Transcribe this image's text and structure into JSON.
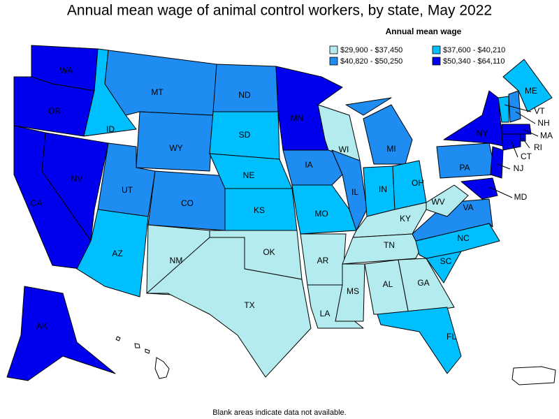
{
  "map": {
    "title": "Annual mean wage of animal control workers, by state, May 2022",
    "legend": {
      "title": "Annual mean wage",
      "items": [
        {
          "label": "$29,900 - $37,450",
          "color": "#b3ebee"
        },
        {
          "label": "$37,600 - $40,210",
          "color": "#00bfff"
        },
        {
          "label": "$40,820 - $50,250",
          "color": "#1e8cf0"
        },
        {
          "label": "$50,340 - $64,110",
          "color": "#0000ee"
        }
      ]
    },
    "states": [
      {
        "label": "WA",
        "color": "#0000ee"
      },
      {
        "label": "OR",
        "color": "#0000ee"
      },
      {
        "label": "CA",
        "color": "#0000ee"
      },
      {
        "label": "NV",
        "color": "#0000ee"
      },
      {
        "label": "ID",
        "color": "#00bfff"
      },
      {
        "label": "MT",
        "color": "#1e8cf0"
      },
      {
        "label": "WY",
        "color": "#1e8cf0"
      },
      {
        "label": "UT",
        "color": "#1e8cf0"
      },
      {
        "label": "CO",
        "color": "#1e8cf0"
      },
      {
        "label": "AZ",
        "color": "#00bfff"
      },
      {
        "label": "NM",
        "color": "#b3ebee"
      },
      {
        "label": "ND",
        "color": "#1e8cf0"
      },
      {
        "label": "SD",
        "color": "#00bfff"
      },
      {
        "label": "NE",
        "color": "#00bfff"
      },
      {
        "label": "KS",
        "color": "#00bfff"
      },
      {
        "label": "OK",
        "color": "#b3ebee"
      },
      {
        "label": "TX",
        "color": "#b3ebee"
      },
      {
        "label": "MN",
        "color": "#0000ee"
      },
      {
        "label": "IA",
        "color": "#1e8cf0"
      },
      {
        "label": "MO",
        "color": "#00bfff"
      },
      {
        "label": "AR",
        "color": "#b3ebee"
      },
      {
        "label": "LA",
        "color": "#b3ebee"
      },
      {
        "label": "WI",
        "color": "#b3ebee"
      },
      {
        "label": "IL",
        "color": "#1e8cf0"
      },
      {
        "label": "MI",
        "color": "#1e8cf0"
      },
      {
        "label": "IN",
        "color": "#00bfff"
      },
      {
        "label": "OH",
        "color": "#00bfff"
      },
      {
        "label": "KY",
        "color": "#b3ebee"
      },
      {
        "label": "TN",
        "color": "#b3ebee"
      },
      {
        "label": "MS",
        "color": "#b3ebee"
      },
      {
        "label": "AL",
        "color": "#b3ebee"
      },
      {
        "label": "GA",
        "color": "#b3ebee"
      },
      {
        "label": "FL",
        "color": "#00bfff"
      },
      {
        "label": "SC",
        "color": "#00bfff"
      },
      {
        "label": "NC",
        "color": "#00bfff"
      },
      {
        "label": "VA",
        "color": "#1e8cf0"
      },
      {
        "label": "WV",
        "color": "#b3ebee"
      },
      {
        "label": "PA",
        "color": "#1e8cf0"
      },
      {
        "label": "NY",
        "color": "#0000ee"
      },
      {
        "label": "ME",
        "color": "#00bfff"
      },
      {
        "label": "VT",
        "color": "#00bfff"
      },
      {
        "label": "NH",
        "color": "#1e8cf0"
      },
      {
        "label": "MA",
        "color": "#0000ee"
      },
      {
        "label": "RI",
        "color": "#0000ee"
      },
      {
        "label": "CT",
        "color": "#0000ee"
      },
      {
        "label": "NJ",
        "color": "#0000ee"
      },
      {
        "label": "MD",
        "color": "#0000ee"
      },
      {
        "label": "AK",
        "color": "#0000ee"
      }
    ],
    "footnote": "Blank areas indicate data not available."
  }
}
